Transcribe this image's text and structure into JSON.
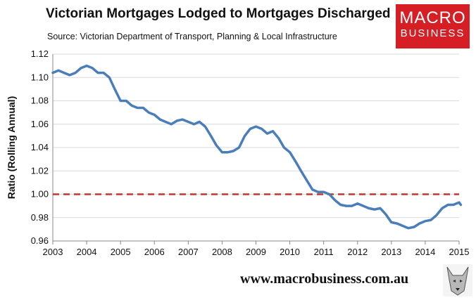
{
  "header": {
    "title": "Victorian Mortgages Lodged to Mortgages Discharged",
    "subtitle": "Source: Victorian Department of Transport, Planning & Local Infrastructure"
  },
  "logo": {
    "line1": "MACRO",
    "line2": "BUSINESS",
    "color": "#d51f25"
  },
  "footer": {
    "url": "www.macrobusiness.com.au"
  },
  "wolf_icon": "wolf-head-icon",
  "chart_data": {
    "type": "line",
    "title": "Victorian Mortgages Lodged to Mortgages Discharged",
    "xlabel": "",
    "ylabel": "Ratio (Rolling Annual)",
    "xlim": [
      2003,
      2015
    ],
    "ylim": [
      0.96,
      1.12
    ],
    "x_ticks": [
      "2003",
      "2004",
      "2005",
      "2006",
      "2007",
      "2008",
      "2009",
      "2010",
      "2011",
      "2012",
      "2013",
      "2014",
      "2015"
    ],
    "y_ticks": [
      "0.96",
      "0.98",
      "1.00",
      "1.02",
      "1.04",
      "1.06",
      "1.08",
      "1.10",
      "1.12"
    ],
    "grid": "horizontal",
    "reference_line": {
      "y": 1.0,
      "style": "dashed",
      "color": "#c0392b"
    },
    "series": [
      {
        "color": "#4a7ebb",
        "x": [
          2003.0,
          2003.17,
          2003.33,
          2003.5,
          2003.67,
          2003.83,
          2004.0,
          2004.17,
          2004.33,
          2004.5,
          2004.67,
          2004.83,
          2005.0,
          2005.17,
          2005.33,
          2005.5,
          2005.67,
          2005.83,
          2006.0,
          2006.17,
          2006.33,
          2006.5,
          2006.67,
          2006.83,
          2007.0,
          2007.17,
          2007.33,
          2007.5,
          2007.67,
          2007.83,
          2008.0,
          2008.17,
          2008.33,
          2008.5,
          2008.67,
          2008.83,
          2009.0,
          2009.17,
          2009.33,
          2009.5,
          2009.67,
          2009.83,
          2010.0,
          2010.17,
          2010.33,
          2010.5,
          2010.67,
          2010.83,
          2011.0,
          2011.17,
          2011.33,
          2011.5,
          2011.67,
          2011.83,
          2012.0,
          2012.17,
          2012.33,
          2012.5,
          2012.67,
          2012.83,
          2013.0,
          2013.17,
          2013.33,
          2013.5,
          2013.67,
          2013.83,
          2014.0,
          2014.17,
          2014.33,
          2014.5,
          2014.67,
          2014.83,
          2015.0,
          2015.05
        ],
        "y": [
          1.104,
          1.106,
          1.104,
          1.102,
          1.104,
          1.108,
          1.11,
          1.108,
          1.104,
          1.104,
          1.1,
          1.09,
          1.08,
          1.08,
          1.076,
          1.074,
          1.074,
          1.07,
          1.068,
          1.064,
          1.062,
          1.06,
          1.063,
          1.064,
          1.062,
          1.06,
          1.062,
          1.058,
          1.05,
          1.042,
          1.036,
          1.036,
          1.037,
          1.04,
          1.05,
          1.056,
          1.058,
          1.056,
          1.052,
          1.054,
          1.048,
          1.04,
          1.036,
          1.028,
          1.02,
          1.012,
          1.004,
          1.002,
          1.002,
          1.0,
          0.995,
          0.991,
          0.99,
          0.99,
          0.992,
          0.99,
          0.988,
          0.987,
          0.988,
          0.983,
          0.976,
          0.975,
          0.973,
          0.971,
          0.972,
          0.975,
          0.977,
          0.978,
          0.982,
          0.988,
          0.991,
          0.991,
          0.993,
          0.991
        ]
      }
    ]
  }
}
